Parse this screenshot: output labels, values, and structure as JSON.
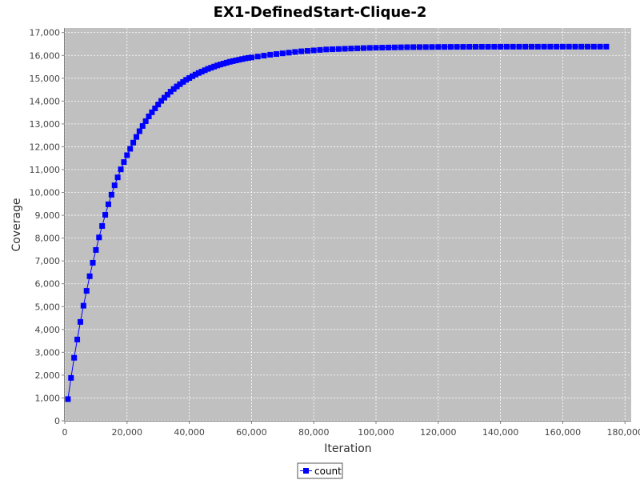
{
  "chart_data": {
    "type": "line",
    "title": "EX1-DefinedStart-Clique-2",
    "xlabel": "Iteration",
    "ylabel": "Coverage",
    "xlim": [
      0,
      182000
    ],
    "ylim": [
      0,
      17200
    ],
    "xticks": [
      0,
      20000,
      40000,
      60000,
      80000,
      100000,
      120000,
      140000,
      160000,
      180000
    ],
    "xtick_labels": [
      "0",
      "20,000",
      "40,000",
      "60,000",
      "80,000",
      "100,000",
      "120,000",
      "140,000",
      "160,000",
      "180,000"
    ],
    "yticks": [
      0,
      1000,
      2000,
      3000,
      4000,
      5000,
      6000,
      7000,
      8000,
      9000,
      10000,
      11000,
      12000,
      13000,
      14000,
      15000,
      16000,
      17000
    ],
    "ytick_labels": [
      "0",
      "1,000",
      "2,000",
      "3,000",
      "4,000",
      "5,000",
      "6,000",
      "7,000",
      "8,000",
      "9,000",
      "10,000",
      "11,000",
      "12,000",
      "13,000",
      "14,000",
      "15,000",
      "16,000",
      "17,000"
    ],
    "grid": true,
    "legend_position": "bottom-center",
    "colors": {
      "plot_background": "#c0c0c0",
      "grid": "#ffffff",
      "series": "#0000ff"
    },
    "series": [
      {
        "name": "count",
        "marker": "square",
        "x": [
          1000,
          2000,
          3000,
          4000,
          5000,
          6000,
          7000,
          8000,
          9000,
          10000,
          11000,
          12000,
          13000,
          14000,
          15000,
          16000,
          17000,
          18000,
          19000,
          20000,
          21000,
          22000,
          23000,
          24000,
          25000,
          26000,
          27000,
          28000,
          29000,
          30000,
          31000,
          32000,
          33000,
          34000,
          35000,
          36000,
          37000,
          38000,
          39000,
          40000,
          41000,
          42000,
          43000,
          44000,
          45000,
          46000,
          47000,
          48000,
          49000,
          50000,
          51000,
          52000,
          53000,
          54000,
          55000,
          56000,
          57000,
          58000,
          59000,
          60000,
          62000,
          64000,
          66000,
          68000,
          70000,
          72000,
          74000,
          76000,
          78000,
          80000,
          82000,
          84000,
          86000,
          88000,
          90000,
          92000,
          94000,
          96000,
          98000,
          100000,
          102000,
          104000,
          106000,
          108000,
          110000,
          112000,
          114000,
          116000,
          118000,
          120000,
          122000,
          124000,
          126000,
          128000,
          130000,
          132000,
          134000,
          136000,
          138000,
          140000,
          142000,
          144000,
          146000,
          148000,
          150000,
          152000,
          154000,
          156000,
          158000,
          160000,
          162000,
          164000,
          166000,
          168000,
          170000,
          172000,
          174000
        ],
        "values": [
          950,
          1880,
          2760,
          3560,
          4330,
          5040,
          5690,
          6330,
          6920,
          7480,
          8030,
          8530,
          9020,
          9480,
          9900,
          10310,
          10660,
          11010,
          11330,
          11630,
          11910,
          12180,
          12430,
          12680,
          12910,
          13120,
          13330,
          13510,
          13680,
          13850,
          14010,
          14150,
          14280,
          14410,
          14530,
          14640,
          14740,
          14840,
          14930,
          15010,
          15090,
          15160,
          15230,
          15290,
          15350,
          15410,
          15460,
          15510,
          15560,
          15600,
          15640,
          15680,
          15720,
          15750,
          15780,
          15810,
          15840,
          15870,
          15890,
          15910,
          15950,
          15990,
          16030,
          16060,
          16090,
          16120,
          16150,
          16180,
          16200,
          16220,
          16240,
          16260,
          16270,
          16280,
          16290,
          16300,
          16310,
          16320,
          16330,
          16335,
          16340,
          16345,
          16350,
          16355,
          16360,
          16362,
          16364,
          16366,
          16368,
          16370,
          16372,
          16373,
          16374,
          16375,
          16376,
          16377,
          16378,
          16378,
          16379,
          16379,
          16380,
          16380,
          16380,
          16381,
          16381,
          16381,
          16382,
          16382,
          16382,
          16382,
          16383,
          16383,
          16383,
          16383,
          16383,
          16383,
          16383
        ]
      }
    ]
  }
}
